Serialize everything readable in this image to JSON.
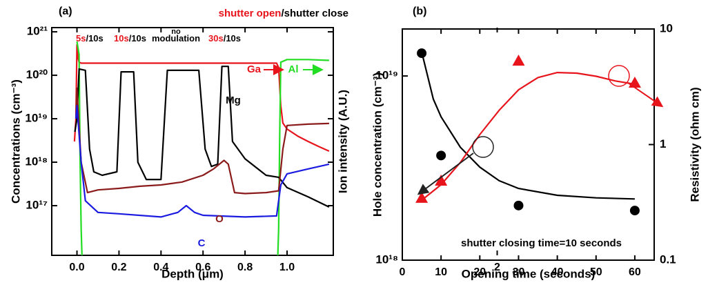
{
  "chart_data": [
    {
      "type": "line",
      "ylog": true,
      "xlabel": "Depth (μm)",
      "ylabel": "Concentrations (cm⁻³)",
      "y2label": "Ion intensity (A.U.)",
      "xlim": [
        -0.12,
        1.22
      ],
      "ylim": [
        7200000000000000.0,
        1.25e+21
      ],
      "xticks": [
        {
          "value": 0,
          "label": "0.0"
        },
        0.2,
        0.4,
        0.6,
        0.8,
        {
          "value": 1,
          "label": "1.0"
        },
        2.0
      ],
      "yticks": [
        {
          "value": 1e+17,
          "label": "10¹⁷"
        },
        {
          "value": 1e+18,
          "label": "10¹⁸"
        },
        {
          "value": 1e+19,
          "label": "10¹⁹"
        },
        {
          "value": 1e+20,
          "label": "10²⁰"
        },
        {
          "value": 1e+21,
          "label": "10²¹"
        }
      ],
      "annotations": [
        [
          {
            "text": "(a)",
            "color": "#000000"
          }
        ],
        [
          {
            "text": "shutter open",
            "color": "#e8141c"
          },
          {
            "text": "/shutter close",
            "color": "#000000"
          }
        ],
        [
          {
            "text": "5s",
            "color": "#e8141c"
          },
          {
            "text": "/10s",
            "color": "#000000"
          }
        ],
        [
          {
            "text": "10s",
            "color": "#e8141c"
          },
          {
            "text": "/10s",
            "color": "#000000"
          }
        ],
        [
          {
            "text": "no",
            "color": "#000000"
          }
        ],
        [
          {
            "text": "modulation",
            "color": "#000000"
          }
        ],
        [
          {
            "text": "30s",
            "color": "#e8141c"
          },
          {
            "text": "/10s",
            "color": "#000000"
          }
        ]
      ],
      "series": [
        {
          "name": "Ga",
          "color": "#e8141c",
          "x": [
            -0.012,
            -0.005,
            0.0,
            0.005,
            0.01,
            0.02,
            0.2,
            0.4,
            0.6,
            0.8,
            0.95,
            0.96,
            0.97,
            0.98,
            1.0,
            1.05,
            1.1,
            1.15,
            1.2
          ],
          "values": [
            3e+18,
            1e+19,
            5e+20,
            2.5e+20,
            2e+20,
            1.9e+20,
            1.9e+20,
            1.9e+20,
            1.9e+20,
            1.9e+20,
            1.9e+20,
            1.5e+20,
            2e+19,
            8e+18,
            5.8e+18,
            4e+18,
            3e+18,
            2.3e+18,
            1.8e+18
          ]
        },
        {
          "name": "Al",
          "color": "#22dd22",
          "x": [
            0.0,
            0.01,
            0.015,
            0.02,
            0.025,
            null,
            0.955,
            0.96,
            0.965,
            0.97,
            1.0,
            1.1,
            1.2
          ],
          "values": [
            6e+20,
            3e+20,
            1e+18,
            3e+16,
            5000000000000000.0,
            null,
            5000000000000000.0,
            3e+16,
            5e+18,
            2e+20,
            2.3e+20,
            2.3e+20,
            2.2e+20
          ]
        },
        {
          "name": "Mg",
          "color": "#000000",
          "x": [
            -0.01,
            0.0,
            0.01,
            0.04,
            0.06,
            0.08,
            0.12,
            0.19,
            0.21,
            0.27,
            0.29,
            0.33,
            0.4,
            0.43,
            0.58,
            0.61,
            0.64,
            0.67,
            0.69,
            0.72,
            0.74,
            0.8,
            0.9,
            0.96,
            1.0,
            1.1,
            1.2
          ],
          "values": [
            5e+18,
            1e+19,
            1.4e+20,
            1.3e+20,
            2e+18,
            6e+17,
            5e+17,
            6e+17,
            1.2e+20,
            1.2e+20,
            1e+18,
            4e+17,
            4e+17,
            1.3e+20,
            1.3e+20,
            2e+18,
            8e+17,
            9e+17,
            1.6e+20,
            1.6e+20,
            3e+18,
            1.2e+18,
            5e+17,
            4.5e+17,
            2.6e+17,
            1.6e+17,
            9.3e+16
          ]
        },
        {
          "name": "O",
          "color": "#8b1a1a",
          "x": [
            -0.005,
            0.0,
            0.02,
            0.05,
            0.1,
            0.2,
            0.3,
            0.4,
            0.5,
            0.6,
            0.65,
            0.7,
            0.72,
            0.75,
            0.8,
            0.9,
            0.96,
            0.98,
            1.0,
            1.1,
            1.2
          ],
          "values": [
            1e+19,
            5e+19,
            1e+18,
            2e+17,
            2.3e+17,
            2.5e+17,
            2.8e+17,
            3e+17,
            3.5e+17,
            5e+17,
            7e+17,
            1.1e+18,
            9e+17,
            2e+17,
            1.9e+17,
            2e+17,
            2.2e+17,
            2e+18,
            7e+18,
            7.5e+18,
            7.8e+18
          ]
        },
        {
          "name": "C",
          "color": "#1a1ae0",
          "x": [
            -0.005,
            0.0,
            0.02,
            0.04,
            0.1,
            0.2,
            0.4,
            0.48,
            0.52,
            0.56,
            0.6,
            0.8,
            0.95,
            0.97,
            1.0,
            1.1,
            1.2
          ],
          "values": [
            1e+19,
            2e+19,
            1e+18,
            1.3e+17,
            7e+16,
            6.5e+16,
            5.5e+16,
            7e+16,
            1e+17,
            7e+16,
            6e+16,
            5.5e+16,
            5.8e+16,
            3e+17,
            5.4e+17,
            7e+17,
            9e+17
          ]
        }
      ]
    },
    {
      "type": "scatter",
      "ylog": true,
      "y2log": true,
      "xlabel": "Opening time (seconds)",
      "ylabel": "Hole concentration (cm⁻³)",
      "y2label": "Resistivity (ohm cm)",
      "xlim": [
        0,
        65
      ],
      "ylim": [
        1e+18,
        1.8e+19
      ],
      "y2lim": [
        0.1,
        10
      ],
      "xticks": [
        0,
        10,
        20,
        30,
        40,
        50,
        60
      ],
      "yticks": [
        {
          "value": 1e+18,
          "label": "10¹⁸"
        },
        {
          "value": 1e+19,
          "label": "10¹⁹"
        }
      ],
      "y2ticks": [
        0.1,
        1,
        10
      ],
      "annotations": [
        [
          {
            "text": "(b)",
            "color": "#000000"
          }
        ],
        [
          {
            "text": "shutter closing time=10 seconds",
            "color": "#000000"
          }
        ]
      ],
      "series": [
        {
          "kind": "line",
          "color": "#000000",
          "x": [
            5,
            8,
            10,
            15,
            20,
            25,
            30,
            40,
            50,
            60
          ],
          "values": [
            1.35e+19,
            7.5e+18,
            6e+18,
            4.1e+18,
            3.2e+18,
            2.7e+18,
            2.45e+18,
            2.25e+18,
            2.18e+18,
            2.15e+18
          ]
        },
        {
          "kind": "line",
          "axis": "y2",
          "color": "#e8141c",
          "x": [
            5,
            10,
            15,
            20,
            25,
            30,
            35,
            40,
            45,
            50,
            55,
            60
          ],
          "values": [
            0.33,
            0.45,
            0.7,
            1.22,
            1.98,
            2.98,
            3.8,
            4.2,
            4.15,
            3.9,
            3.55,
            3.33
          ]
        },
        {
          "kind": "scatter",
          "marker": "circle",
          "color": "#000000",
          "x": [
            5,
            10,
            30,
            60
          ],
          "values": [
            1.33e+19,
            3.7e+18,
            1.98e+18,
            1.86e+18
          ]
        },
        {
          "kind": "scatter",
          "marker": "triangle",
          "axis": "y2",
          "color": "#e8141c",
          "x": [
            5,
            10,
            30,
            60
          ],
          "values": [
            0.345,
            0.486,
            5.3,
            3.42
          ]
        }
      ]
    }
  ]
}
